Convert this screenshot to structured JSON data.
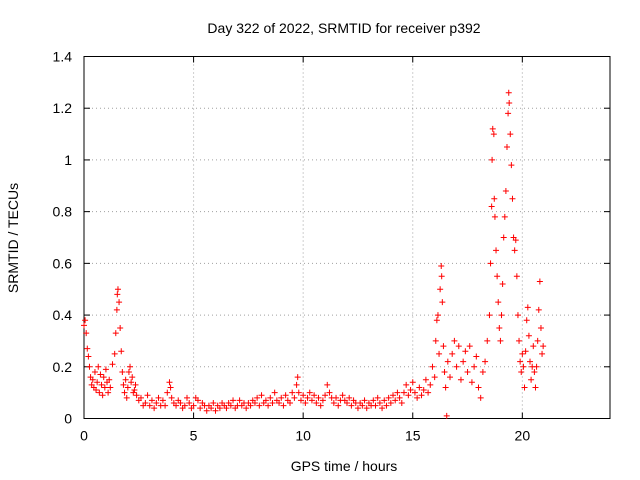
{
  "chart_data": {
    "type": "scatter",
    "title": "Day 322 of 2022, SRMTID for receiver p392",
    "xlabel": "GPS time / hours",
    "ylabel": "SRMTID / TECUs",
    "xlim": [
      0,
      24
    ],
    "ylim": [
      0,
      1.4
    ],
    "xticks": [
      0,
      5,
      10,
      15,
      20
    ],
    "xtick_labels": [
      "0",
      "5",
      "10",
      "15",
      "20"
    ],
    "yticks": [
      0,
      0.2,
      0.4,
      0.6,
      0.8,
      1.0,
      1.2,
      1.4
    ],
    "ytick_labels": [
      "0",
      "0.2",
      "0.4",
      "0.6",
      "0.8",
      "1",
      "1.2",
      "1.4"
    ],
    "grid": true,
    "marker": "+",
    "color": "#ff0000",
    "series": [
      {
        "name": "SRMTID",
        "points": [
          [
            0.0,
            0.36
          ],
          [
            0.05,
            0.38
          ],
          [
            0.1,
            0.33
          ],
          [
            0.15,
            0.27
          ],
          [
            0.2,
            0.24
          ],
          [
            0.25,
            0.2
          ],
          [
            0.3,
            0.16
          ],
          [
            0.35,
            0.13
          ],
          [
            0.4,
            0.15
          ],
          [
            0.45,
            0.12
          ],
          [
            0.5,
            0.18
          ],
          [
            0.55,
            0.11
          ],
          [
            0.6,
            0.14
          ],
          [
            0.65,
            0.2
          ],
          [
            0.7,
            0.1
          ],
          [
            0.75,
            0.17
          ],
          [
            0.8,
            0.13
          ],
          [
            0.85,
            0.09
          ],
          [
            0.9,
            0.16
          ],
          [
            0.95,
            0.12
          ],
          [
            1.0,
            0.19
          ],
          [
            1.05,
            0.14
          ],
          [
            1.1,
            0.1
          ],
          [
            1.15,
            0.15
          ],
          [
            1.2,
            0.12
          ],
          [
            1.3,
            0.21
          ],
          [
            1.4,
            0.25
          ],
          [
            1.45,
            0.33
          ],
          [
            1.5,
            0.42
          ],
          [
            1.52,
            0.48
          ],
          [
            1.55,
            0.5
          ],
          [
            1.6,
            0.45
          ],
          [
            1.65,
            0.35
          ],
          [
            1.7,
            0.26
          ],
          [
            1.75,
            0.18
          ],
          [
            1.8,
            0.13
          ],
          [
            1.85,
            0.1
          ],
          [
            1.9,
            0.15
          ],
          [
            1.95,
            0.08
          ],
          [
            2.0,
            0.12
          ],
          [
            2.05,
            0.18
          ],
          [
            2.1,
            0.2
          ],
          [
            2.15,
            0.14
          ],
          [
            2.2,
            0.16
          ],
          [
            2.25,
            0.1
          ],
          [
            2.3,
            0.11
          ],
          [
            2.35,
            0.13
          ],
          [
            2.4,
            0.09
          ],
          [
            2.5,
            0.07
          ],
          [
            2.6,
            0.08
          ],
          [
            2.7,
            0.05
          ],
          [
            2.8,
            0.06
          ],
          [
            2.9,
            0.09
          ],
          [
            3.0,
            0.05
          ],
          [
            3.1,
            0.07
          ],
          [
            3.2,
            0.04
          ],
          [
            3.3,
            0.06
          ],
          [
            3.4,
            0.08
          ],
          [
            3.5,
            0.05
          ],
          [
            3.6,
            0.07
          ],
          [
            3.7,
            0.05
          ],
          [
            3.8,
            0.1
          ],
          [
            3.9,
            0.14
          ],
          [
            3.95,
            0.12
          ],
          [
            4.0,
            0.08
          ],
          [
            4.1,
            0.06
          ],
          [
            4.2,
            0.05
          ],
          [
            4.3,
            0.07
          ],
          [
            4.4,
            0.06
          ],
          [
            4.5,
            0.04
          ],
          [
            4.6,
            0.05
          ],
          [
            4.7,
            0.08
          ],
          [
            4.8,
            0.06
          ],
          [
            4.9,
            0.04
          ],
          [
            5.0,
            0.05
          ],
          [
            5.1,
            0.08
          ],
          [
            5.2,
            0.07
          ],
          [
            5.3,
            0.04
          ],
          [
            5.4,
            0.06
          ],
          [
            5.5,
            0.05
          ],
          [
            5.6,
            0.03
          ],
          [
            5.7,
            0.05
          ],
          [
            5.8,
            0.04
          ],
          [
            5.9,
            0.06
          ],
          [
            6.0,
            0.03
          ],
          [
            6.1,
            0.05
          ],
          [
            6.2,
            0.04
          ],
          [
            6.3,
            0.06
          ],
          [
            6.4,
            0.05
          ],
          [
            6.5,
            0.04
          ],
          [
            6.6,
            0.06
          ],
          [
            6.7,
            0.05
          ],
          [
            6.8,
            0.07
          ],
          [
            6.9,
            0.04
          ],
          [
            7.0,
            0.05
          ],
          [
            7.1,
            0.07
          ],
          [
            7.2,
            0.05
          ],
          [
            7.3,
            0.06
          ],
          [
            7.4,
            0.04
          ],
          [
            7.5,
            0.06
          ],
          [
            7.6,
            0.05
          ],
          [
            7.7,
            0.07
          ],
          [
            7.8,
            0.06
          ],
          [
            7.9,
            0.08
          ],
          [
            8.0,
            0.05
          ],
          [
            8.1,
            0.09
          ],
          [
            8.2,
            0.06
          ],
          [
            8.3,
            0.07
          ],
          [
            8.4,
            0.05
          ],
          [
            8.5,
            0.08
          ],
          [
            8.6,
            0.06
          ],
          [
            8.7,
            0.1
          ],
          [
            8.8,
            0.07
          ],
          [
            8.9,
            0.06
          ],
          [
            9.0,
            0.08
          ],
          [
            9.1,
            0.05
          ],
          [
            9.2,
            0.09
          ],
          [
            9.3,
            0.07
          ],
          [
            9.4,
            0.06
          ],
          [
            9.5,
            0.1
          ],
          [
            9.6,
            0.08
          ],
          [
            9.7,
            0.13
          ],
          [
            9.75,
            0.16
          ],
          [
            9.8,
            0.1
          ],
          [
            9.9,
            0.07
          ],
          [
            10.0,
            0.09
          ],
          [
            10.1,
            0.06
          ],
          [
            10.2,
            0.08
          ],
          [
            10.3,
            0.1
          ],
          [
            10.4,
            0.07
          ],
          [
            10.5,
            0.09
          ],
          [
            10.6,
            0.06
          ],
          [
            10.7,
            0.08
          ],
          [
            10.8,
            0.05
          ],
          [
            10.9,
            0.07
          ],
          [
            11.0,
            0.09
          ],
          [
            11.1,
            0.13
          ],
          [
            11.2,
            0.1
          ],
          [
            11.3,
            0.08
          ],
          [
            11.4,
            0.06
          ],
          [
            11.5,
            0.08
          ],
          [
            11.6,
            0.05
          ],
          [
            11.7,
            0.07
          ],
          [
            11.8,
            0.09
          ],
          [
            11.9,
            0.07
          ],
          [
            12.0,
            0.06
          ],
          [
            12.1,
            0.08
          ],
          [
            12.2,
            0.05
          ],
          [
            12.3,
            0.07
          ],
          [
            12.4,
            0.06
          ],
          [
            12.5,
            0.04
          ],
          [
            12.6,
            0.06
          ],
          [
            12.7,
            0.05
          ],
          [
            12.8,
            0.07
          ],
          [
            12.9,
            0.04
          ],
          [
            13.0,
            0.06
          ],
          [
            13.1,
            0.05
          ],
          [
            13.2,
            0.07
          ],
          [
            13.3,
            0.05
          ],
          [
            13.4,
            0.08
          ],
          [
            13.5,
            0.06
          ],
          [
            13.6,
            0.04
          ],
          [
            13.7,
            0.07
          ],
          [
            13.8,
            0.05
          ],
          [
            13.9,
            0.08
          ],
          [
            14.0,
            0.06
          ],
          [
            14.1,
            0.09
          ],
          [
            14.2,
            0.07
          ],
          [
            14.3,
            0.1
          ],
          [
            14.4,
            0.08
          ],
          [
            14.5,
            0.06
          ],
          [
            14.6,
            0.1
          ],
          [
            14.7,
            0.13
          ],
          [
            14.8,
            0.09
          ],
          [
            14.9,
            0.11
          ],
          [
            15.0,
            0.14
          ],
          [
            15.1,
            0.1
          ],
          [
            15.2,
            0.08
          ],
          [
            15.3,
            0.12
          ],
          [
            15.4,
            0.09
          ],
          [
            15.5,
            0.11
          ],
          [
            15.6,
            0.15
          ],
          [
            15.7,
            0.1
          ],
          [
            15.8,
            0.13
          ],
          [
            15.9,
            0.2
          ],
          [
            16.0,
            0.16
          ],
          [
            16.05,
            0.3
          ],
          [
            16.1,
            0.38
          ],
          [
            16.15,
            0.4
          ],
          [
            16.2,
            0.25
          ],
          [
            16.25,
            0.5
          ],
          [
            16.3,
            0.59
          ],
          [
            16.32,
            0.55
          ],
          [
            16.35,
            0.45
          ],
          [
            16.4,
            0.28
          ],
          [
            16.45,
            0.18
          ],
          [
            16.5,
            0.12
          ],
          [
            16.55,
            0.01
          ],
          [
            16.6,
            0.22
          ],
          [
            16.7,
            0.16
          ],
          [
            16.8,
            0.25
          ],
          [
            16.9,
            0.3
          ],
          [
            17.0,
            0.2
          ],
          [
            17.1,
            0.28
          ],
          [
            17.2,
            0.15
          ],
          [
            17.3,
            0.22
          ],
          [
            17.4,
            0.26
          ],
          [
            17.5,
            0.18
          ],
          [
            17.6,
            0.28
          ],
          [
            17.7,
            0.14
          ],
          [
            17.8,
            0.2
          ],
          [
            17.9,
            0.24
          ],
          [
            18.0,
            0.12
          ],
          [
            18.1,
            0.08
          ],
          [
            18.2,
            0.18
          ],
          [
            18.3,
            0.22
          ],
          [
            18.4,
            0.3
          ],
          [
            18.5,
            0.4
          ],
          [
            18.55,
            0.6
          ],
          [
            18.6,
            0.82
          ],
          [
            18.62,
            1.0
          ],
          [
            18.65,
            1.12
          ],
          [
            18.7,
            1.1
          ],
          [
            18.72,
            0.85
          ],
          [
            18.75,
            0.78
          ],
          [
            18.8,
            0.65
          ],
          [
            18.85,
            0.55
          ],
          [
            18.9,
            0.45
          ],
          [
            18.95,
            0.35
          ],
          [
            19.0,
            0.3
          ],
          [
            19.05,
            0.4
          ],
          [
            19.1,
            0.52
          ],
          [
            19.15,
            0.7
          ],
          [
            19.2,
            0.78
          ],
          [
            19.25,
            0.88
          ],
          [
            19.3,
            1.05
          ],
          [
            19.35,
            1.18
          ],
          [
            19.38,
            1.26
          ],
          [
            19.4,
            1.22
          ],
          [
            19.45,
            1.1
          ],
          [
            19.5,
            0.98
          ],
          [
            19.55,
            0.85
          ],
          [
            19.6,
            0.7
          ],
          [
            19.65,
            0.65
          ],
          [
            19.7,
            0.69
          ],
          [
            19.75,
            0.55
          ],
          [
            19.8,
            0.4
          ],
          [
            19.85,
            0.3
          ],
          [
            19.9,
            0.22
          ],
          [
            19.95,
            0.18
          ],
          [
            20.0,
            0.25
          ],
          [
            20.05,
            0.2
          ],
          [
            20.1,
            0.12
          ],
          [
            20.15,
            0.26
          ],
          [
            20.2,
            0.38
          ],
          [
            20.25,
            0.43
          ],
          [
            20.3,
            0.32
          ],
          [
            20.35,
            0.22
          ],
          [
            20.4,
            0.15
          ],
          [
            20.45,
            0.2
          ],
          [
            20.5,
            0.28
          ],
          [
            20.55,
            0.18
          ],
          [
            20.6,
            0.12
          ],
          [
            20.65,
            0.2
          ],
          [
            20.7,
            0.3
          ],
          [
            20.75,
            0.42
          ],
          [
            20.8,
            0.53
          ],
          [
            20.85,
            0.35
          ],
          [
            20.9,
            0.25
          ],
          [
            20.95,
            0.28
          ]
        ]
      }
    ]
  }
}
